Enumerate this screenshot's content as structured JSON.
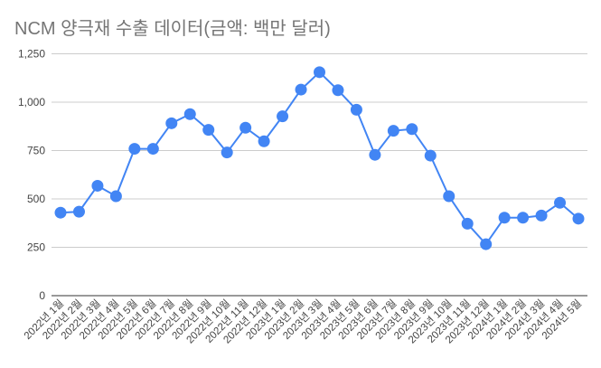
{
  "chart_data": {
    "type": "line",
    "title": "NCM 양극재 수출 데이터(금액: 백만 달러)",
    "xlabel": "",
    "ylabel": "",
    "ylim": [
      0,
      1250
    ],
    "yticks": [
      "0",
      "250",
      "500",
      "750",
      "1,000",
      "1,250"
    ],
    "ytick_values": [
      0,
      250,
      500,
      750,
      1000,
      1250
    ],
    "grid": true,
    "legend": "none",
    "color": "#4285f4",
    "categories": [
      "2022년 1월",
      "2022년 2월",
      "2022년 3월",
      "2022년 4월",
      "2022년 5월",
      "2022년 6월",
      "2022년 7월",
      "2022년 8월",
      "2022년 9월",
      "2022년 10월",
      "2022년 11월",
      "2022년 12월",
      "2023년 1월",
      "2023년 2월",
      "2023년 3월",
      "2023년 4월",
      "2023년 5월",
      "2023년 6월",
      "2023년 7월",
      "2023년 8월",
      "2023년 9월",
      "2023년 10월",
      "2023년 11월",
      "2023년 12월",
      "2024년 1월",
      "2024년 2월",
      "2024년 3월",
      "2024년 4월",
      "2024년 5월"
    ],
    "values": [
      429,
      434,
      568,
      514,
      759,
      759,
      891,
      938,
      857,
      740,
      868,
      798,
      927,
      1065,
      1155,
      1062,
      961,
      728,
      852,
      861,
      724,
      514,
      372,
      266,
      403,
      403,
      414,
      480,
      398
    ]
  }
}
